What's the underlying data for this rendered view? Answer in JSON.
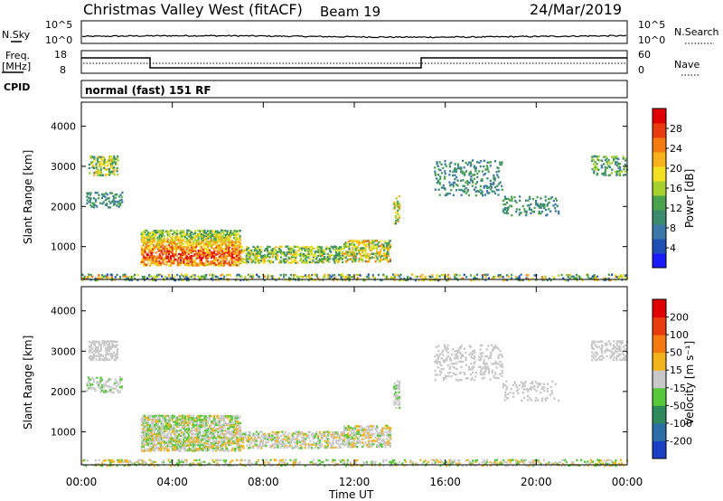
{
  "header": {
    "title": "Christmas Valley West (fitACF)",
    "beam": "Beam 19",
    "date": "24/Mar/2019"
  },
  "status_panels": {
    "noise": {
      "left_label": "N.Sky",
      "right_label": "N.Search",
      "left_ticks": [
        "10^5",
        "10^0"
      ],
      "right_ticks": [
        "10^5",
        "10^0"
      ]
    },
    "freq": {
      "left_label_1": "Freq.",
      "left_label_2": "[MHz]",
      "right_label": "Nave",
      "left_ticks": [
        "18",
        "8"
      ],
      "right_ticks": [
        "60",
        "0"
      ]
    },
    "cpid": {
      "label": "CPID",
      "mode": "normal (fast) 151 RF"
    }
  },
  "chart_data": [
    {
      "type": "heatmap",
      "panel": "power",
      "ylabel": "Slant Range [km]",
      "x_ticks": [
        "00:00",
        "04:00",
        "08:00",
        "12:00",
        "16:00",
        "20:00",
        "00:00"
      ],
      "y_ticks": [
        4000,
        3000,
        2000,
        1000
      ],
      "ylim": [
        180,
        4600
      ],
      "xlim_hours": [
        0,
        24
      ],
      "colorbar": {
        "label": "Power [dB]",
        "ticks": [
          "28",
          "24",
          "20",
          "16",
          "12",
          "8",
          "4"
        ],
        "colors": [
          "#1a1aff",
          "#1f4fb5",
          "#3c79a8",
          "#3a8a6c",
          "#49a34d",
          "#a6d12c",
          "#f2e022",
          "#f7b21a",
          "#f57a10",
          "#e83b0e",
          "#e00000"
        ]
      },
      "regions": [
        {
          "t0": 0.3,
          "t1": 1.6,
          "r0": 2800,
          "r1": 3300,
          "v0": 0.25,
          "v1": 0.75,
          "d": 0.55
        },
        {
          "t0": 0.2,
          "t1": 1.8,
          "r0": 2000,
          "r1": 2400,
          "v0": 0.15,
          "v1": 0.45,
          "d": 0.4
        },
        {
          "t0": 2.6,
          "t1": 7.0,
          "r0": 550,
          "r1": 1450,
          "v0": 0.35,
          "v1": 0.95,
          "d": 0.75
        },
        {
          "t0": 7.0,
          "t1": 11.5,
          "r0": 620,
          "r1": 1050,
          "v0": 0.25,
          "v1": 0.7,
          "d": 0.55
        },
        {
          "t0": 11.5,
          "t1": 13.6,
          "r0": 650,
          "r1": 1200,
          "v0": 0.3,
          "v1": 0.8,
          "d": 0.6
        },
        {
          "t0": 13.7,
          "t1": 14.0,
          "r0": 1600,
          "r1": 2300,
          "v0": 0.3,
          "v1": 0.8,
          "d": 0.5
        },
        {
          "t0": 15.5,
          "t1": 18.5,
          "r0": 2300,
          "r1": 3200,
          "v0": 0.15,
          "v1": 0.45,
          "d": 0.25
        },
        {
          "t0": 18.5,
          "t1": 21.0,
          "r0": 1800,
          "r1": 2300,
          "v0": 0.15,
          "v1": 0.45,
          "d": 0.25
        },
        {
          "t0": 22.4,
          "t1": 24.0,
          "r0": 2800,
          "r1": 3300,
          "v0": 0.2,
          "v1": 0.55,
          "d": 0.4
        },
        {
          "t0": 0.0,
          "t1": 24.0,
          "r0": 180,
          "r1": 350,
          "v0": 0.1,
          "v1": 0.8,
          "d": 0.35
        }
      ]
    },
    {
      "type": "heatmap",
      "panel": "velocity",
      "ylabel": "Slant Range [km]",
      "xlabel": "Time UT",
      "x_ticks": [
        "00:00",
        "04:00",
        "08:00",
        "12:00",
        "16:00",
        "20:00",
        "00:00"
      ],
      "y_ticks": [
        4000,
        3000,
        2000,
        1000
      ],
      "ylim": [
        180,
        4600
      ],
      "xlim_hours": [
        0,
        24
      ],
      "colorbar": {
        "label": "Velocity [m s⁻¹]",
        "ticks": [
          "200",
          "100",
          "50",
          "15",
          "-15",
          "-50",
          "-100",
          "-200"
        ],
        "colors": [
          "#1b3fc4",
          "#2d6ea8",
          "#2e8a5c",
          "#57c83a",
          "#c8c8c8",
          "#f2b21a",
          "#f57a10",
          "#e83b0e",
          "#e00000"
        ]
      },
      "regions": [
        {
          "t0": 0.3,
          "t1": 1.6,
          "r0": 2800,
          "r1": 3300,
          "v0": 0.45,
          "v1": 0.55,
          "d": 0.55
        },
        {
          "t0": 0.2,
          "t1": 1.8,
          "r0": 2000,
          "r1": 2400,
          "v0": 0.4,
          "v1": 0.55,
          "d": 0.4
        },
        {
          "t0": 2.6,
          "t1": 7.0,
          "r0": 550,
          "r1": 1450,
          "v0": 0.35,
          "v1": 0.62,
          "d": 0.75
        },
        {
          "t0": 7.0,
          "t1": 11.5,
          "r0": 620,
          "r1": 1050,
          "v0": 0.4,
          "v1": 0.6,
          "d": 0.55
        },
        {
          "t0": 11.5,
          "t1": 13.6,
          "r0": 650,
          "r1": 1200,
          "v0": 0.4,
          "v1": 0.62,
          "d": 0.6
        },
        {
          "t0": 13.7,
          "t1": 14.0,
          "r0": 1600,
          "r1": 2300,
          "v0": 0.4,
          "v1": 0.55,
          "d": 0.5
        },
        {
          "t0": 15.5,
          "t1": 18.5,
          "r0": 2300,
          "r1": 3200,
          "v0": 0.45,
          "v1": 0.55,
          "d": 0.25
        },
        {
          "t0": 18.5,
          "t1": 21.0,
          "r0": 1800,
          "r1": 2300,
          "v0": 0.45,
          "v1": 0.55,
          "d": 0.25
        },
        {
          "t0": 22.4,
          "t1": 24.0,
          "r0": 2800,
          "r1": 3300,
          "v0": 0.45,
          "v1": 0.55,
          "d": 0.4
        },
        {
          "t0": 0.0,
          "t1": 24.0,
          "r0": 180,
          "r1": 350,
          "v0": 0.35,
          "v1": 0.65,
          "d": 0.35
        }
      ]
    }
  ]
}
